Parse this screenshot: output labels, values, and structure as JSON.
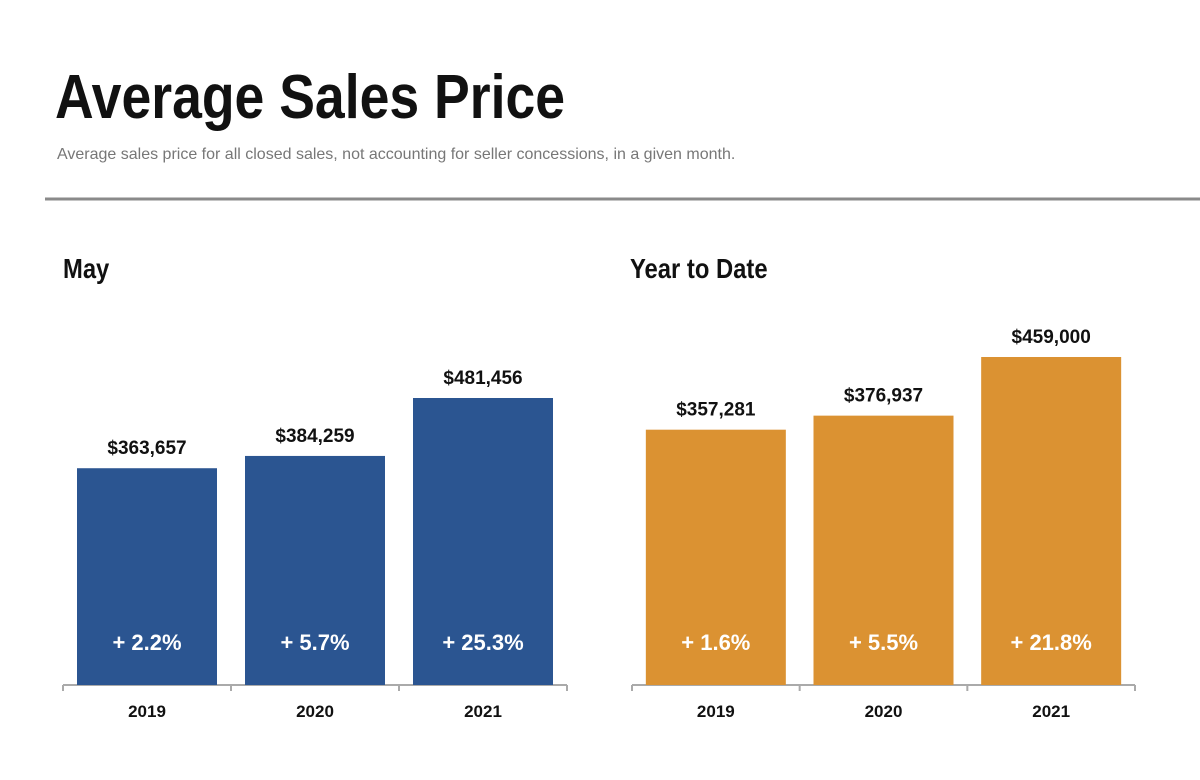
{
  "header": {
    "title": "Average Sales Price",
    "subtitle": "Average sales price for all closed sales, not accounting for seller concessions, in a given month."
  },
  "chart_data": [
    {
      "type": "bar",
      "title": "May",
      "categories": [
        "2019",
        "2020",
        "2021"
      ],
      "values": [
        363657,
        384259,
        481456
      ],
      "value_labels": [
        "$363,657",
        "$384,259",
        "$481,456"
      ],
      "changes": [
        2.2,
        5.7,
        25.3
      ],
      "change_labels": [
        "+ 2.2%",
        "+ 5.7%",
        "+ 25.3%"
      ],
      "color": "#2b5591"
    },
    {
      "type": "bar",
      "title": "Year to Date",
      "categories": [
        "2019",
        "2020",
        "2021"
      ],
      "values": [
        357281,
        376937,
        459000
      ],
      "value_labels": [
        "$357,281",
        "$376,937",
        "$459,000"
      ],
      "changes": [
        1.6,
        5.5,
        21.8
      ],
      "change_labels": [
        "+ 1.6%",
        "+ 5.5%",
        "+ 21.8%"
      ],
      "color": "#db9232"
    }
  ]
}
